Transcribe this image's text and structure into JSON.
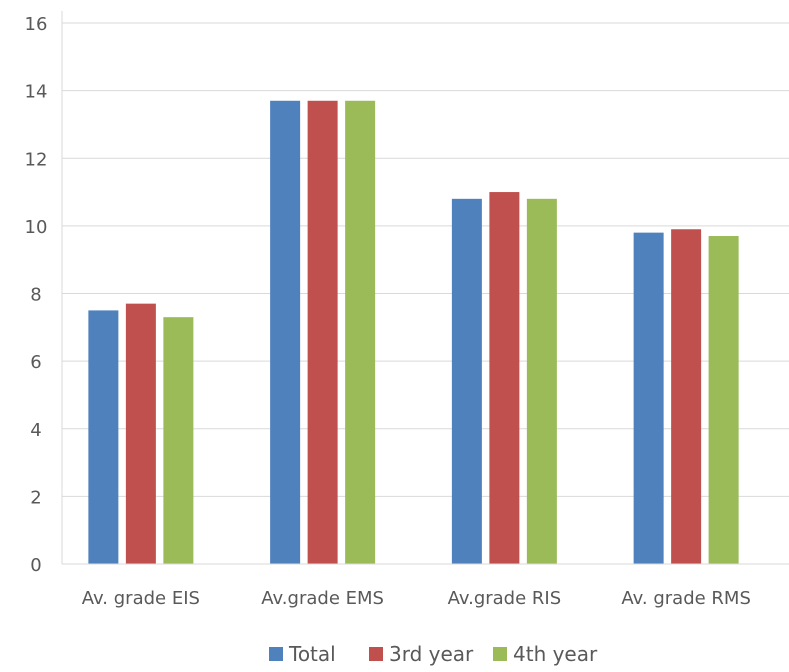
{
  "chart_data": {
    "type": "bar",
    "categories": [
      "Av. grade  EIS",
      "Av.grade EMS",
      "Av.grade RIS",
      "Av. grade RMS"
    ],
    "series": [
      {
        "name": "Total",
        "color": "#4F81BD",
        "values": [
          7.5,
          13.7,
          10.8,
          9.8
        ]
      },
      {
        "name": "3rd year",
        "color": "#C0504D",
        "values": [
          7.7,
          13.7,
          11.0,
          9.9
        ]
      },
      {
        "name": "4th year",
        "color": "#9BBB59",
        "values": [
          7.3,
          13.7,
          10.8,
          9.7
        ]
      }
    ],
    "ylim": [
      0,
      16
    ],
    "yticks": [
      0,
      2,
      4,
      6,
      8,
      10,
      12,
      14,
      16
    ],
    "grid": true,
    "legend_position": "bottom"
  }
}
